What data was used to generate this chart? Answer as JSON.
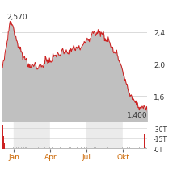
{
  "price_label_high": "2,570",
  "price_label_low": "1,400",
  "yticks_right": [
    1.6,
    2.0,
    2.4
  ],
  "ytick_labels_right": [
    "1,6",
    "2,0",
    "2,4"
  ],
  "ylim": [
    1.28,
    2.72
  ],
  "x_tick_labels": [
    "Jan",
    "Apr",
    "Jul",
    "Okt"
  ],
  "x_tick_positions": [
    0.083,
    0.333,
    0.583,
    0.833
  ],
  "line_color": "#cc2222",
  "fill_color": "#c0c0c0",
  "background_color": "#ffffff",
  "volume_bar_color_red": "#cc2222",
  "volume_bar_color_gray": "#bbbbbb",
  "grid_color": "#cccccc",
  "label_color": "#cc6600",
  "annotation_color": "#333333",
  "vol_ytick_labels": [
    "-30T",
    "-15T",
    "-0T"
  ],
  "vol_band_color": "#ebebeb"
}
